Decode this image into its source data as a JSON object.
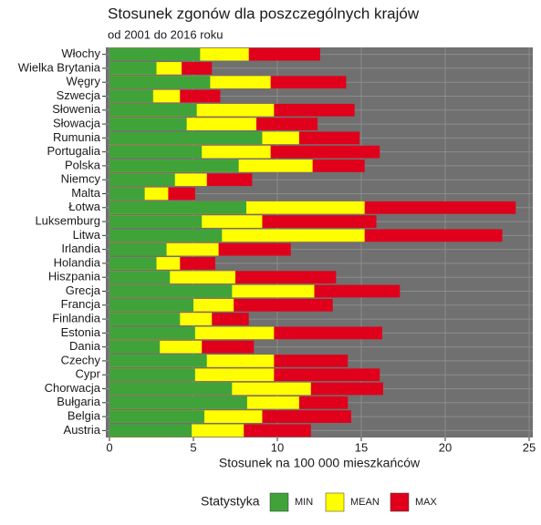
{
  "chart_data": {
    "type": "bar",
    "orientation": "horizontal",
    "position": "identity",
    "title": "Stosunek zgonów dla poszczególnych krajów",
    "subtitle": "od 2001 do 2016 roku",
    "x_label": "Stosunek na 100 000 mieszkańców",
    "legend_title": "Statystyka",
    "legend_position": "bottom",
    "grid": true,
    "categories": [
      "Włochy",
      "Wielka Brytania",
      "Węgry",
      "Szwecja",
      "Słowenia",
      "Słowacja",
      "Rumunia",
      "Portugalia",
      "Polska",
      "Niemcy",
      "Malta",
      "Łotwa",
      "Luksemburg",
      "Litwa",
      "Irlandia",
      "Holandia",
      "Hiszpania",
      "Grecja",
      "Francja",
      "Finlandia",
      "Estonia",
      "Dania",
      "Czechy",
      "Cypr",
      "Chorwacja",
      "Bułgaria",
      "Belgia",
      "Austria"
    ],
    "series": [
      {
        "name": "MIN",
        "color": "#3fa33a",
        "values": [
          5.4,
          2.8,
          6.0,
          2.6,
          5.2,
          4.6,
          9.1,
          5.5,
          7.7,
          3.9,
          2.1,
          8.15,
          5.5,
          6.7,
          3.4,
          2.8,
          3.6,
          7.3,
          5.0,
          4.2,
          5.1,
          3.0,
          5.8,
          5.1,
          7.3,
          8.2,
          5.65,
          4.9
        ]
      },
      {
        "name": "MEAN",
        "color": "#ffff00",
        "values": [
          8.3,
          4.3,
          9.6,
          4.2,
          9.8,
          8.75,
          11.3,
          9.6,
          12.1,
          5.8,
          3.5,
          15.2,
          9.1,
          15.2,
          6.5,
          4.2,
          7.5,
          12.2,
          7.4,
          6.1,
          9.8,
          5.5,
          9.8,
          9.8,
          12.0,
          11.3,
          9.1,
          8.0
        ]
      },
      {
        "name": "MAX",
        "color": "#e0001b",
        "values": [
          12.55,
          6.1,
          14.1,
          6.6,
          14.6,
          12.4,
          14.9,
          16.1,
          15.2,
          8.5,
          5.1,
          24.2,
          15.9,
          23.4,
          10.8,
          6.3,
          13.5,
          17.3,
          13.3,
          8.3,
          16.25,
          8.6,
          14.2,
          16.1,
          16.3,
          14.2,
          14.4,
          12.0
        ]
      }
    ],
    "xlim": [
      0,
      25
    ],
    "xticks": [
      0,
      5,
      10,
      15,
      20,
      25
    ]
  }
}
